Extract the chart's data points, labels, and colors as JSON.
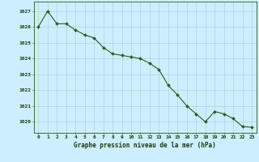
{
  "hours": [
    0,
    1,
    2,
    3,
    4,
    5,
    6,
    7,
    8,
    9,
    10,
    11,
    12,
    13,
    14,
    15,
    16,
    17,
    18,
    19,
    20,
    21,
    22,
    23
  ],
  "pressure": [
    1026.0,
    1027.0,
    1026.2,
    1026.2,
    1025.8,
    1025.5,
    1025.3,
    1024.7,
    1024.3,
    1024.2,
    1024.1,
    1024.0,
    1023.7,
    1023.3,
    1022.3,
    1021.7,
    1021.0,
    1020.5,
    1020.0,
    1020.65,
    1020.5,
    1020.2,
    1019.7,
    1019.65
  ],
  "yticks": [
    1020,
    1021,
    1022,
    1023,
    1024,
    1025,
    1026,
    1027
  ],
  "line_color": "#2d5a1b",
  "marker_color": "#2d5a1b",
  "bg_color": "#cceeff",
  "grid_color": "#aacccc",
  "xlabel": "Graphe pression niveau de la mer (hPa)",
  "tick_color": "#1a3a0a",
  "ylim_low": 1019.3,
  "ylim_high": 1027.6
}
